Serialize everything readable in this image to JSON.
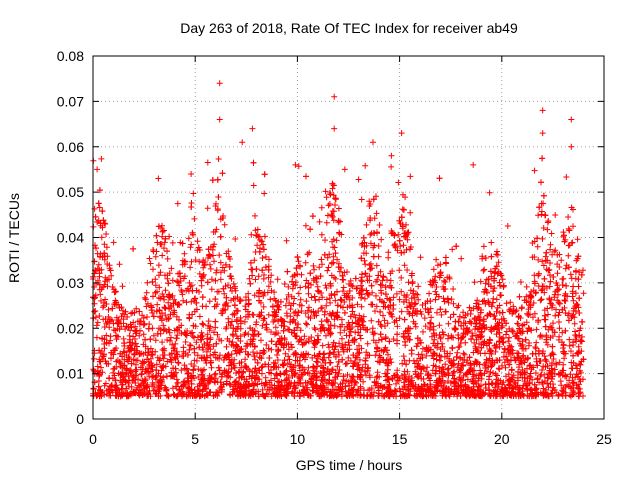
{
  "chart_data": {
    "type": "scatter",
    "title": "Day 263 of 2018, Rate Of TEC Index for receiver ab49",
    "xlabel": "GPS time / hours",
    "ylabel": "ROTI / TECUs",
    "xlim": [
      0,
      25
    ],
    "ylim": [
      0,
      0.08
    ],
    "x_ticks": [
      0,
      5,
      10,
      15,
      20,
      25
    ],
    "x_tick_labels": [
      "0",
      "5",
      "10",
      "15",
      "20",
      "25"
    ],
    "y_ticks": [
      0,
      0.01,
      0.02,
      0.03,
      0.04,
      0.05,
      0.06,
      0.07,
      0.08
    ],
    "y_tick_labels": [
      "0",
      "0.01",
      "0.02",
      "0.03",
      "0.04",
      "0.05",
      "0.06",
      "0.07",
      "0.08"
    ],
    "grid": true,
    "marker": "plus",
    "color": "#ff0000",
    "x_data_range": [
      0,
      24
    ],
    "typical_y_range": [
      0.005,
      0.03
    ],
    "notable_peaks": [
      {
        "x": 0.2,
        "y": 0.055
      },
      {
        "x": 3.2,
        "y": 0.053
      },
      {
        "x": 4.8,
        "y": 0.054
      },
      {
        "x": 6.2,
        "y": 0.074
      },
      {
        "x": 6.2,
        "y": 0.066
      },
      {
        "x": 7.3,
        "y": 0.061
      },
      {
        "x": 7.8,
        "y": 0.064
      },
      {
        "x": 9.9,
        "y": 0.056
      },
      {
        "x": 11.8,
        "y": 0.071
      },
      {
        "x": 11.8,
        "y": 0.064
      },
      {
        "x": 13.7,
        "y": 0.061
      },
      {
        "x": 14.6,
        "y": 0.058
      },
      {
        "x": 15.1,
        "y": 0.063
      },
      {
        "x": 18.6,
        "y": 0.056
      },
      {
        "x": 22.0,
        "y": 0.068
      },
      {
        "x": 22.0,
        "y": 0.063
      },
      {
        "x": 23.4,
        "y": 0.066
      },
      {
        "x": 23.4,
        "y": 0.06
      }
    ]
  }
}
